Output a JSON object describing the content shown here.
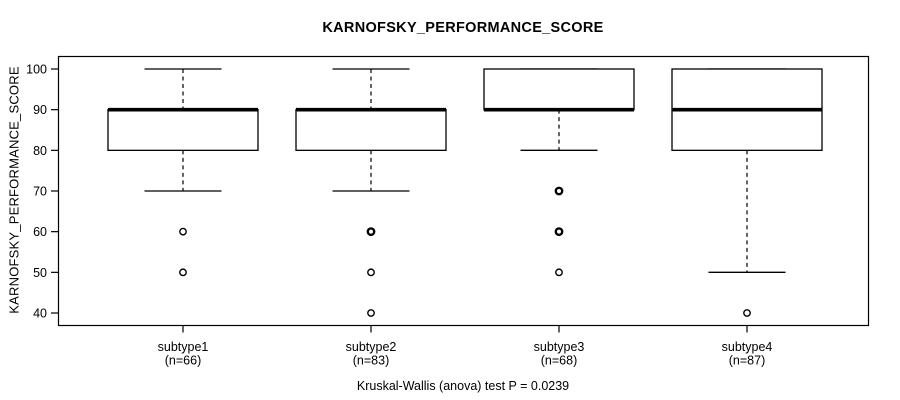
{
  "figure": {
    "background": "#ffffff",
    "line_color": "#000000"
  },
  "chart_data": {
    "type": "boxplot",
    "title": "KARNOFSKY_PERFORMANCE_SCORE",
    "ylabel": "KARNOFSKY_PERFORMANCE_SCORE",
    "xlabel": "",
    "footer": "Kruskal-Wallis (anova) test P = 0.0239",
    "ylim": [
      40,
      100
    ],
    "yticks": [
      40,
      50,
      60,
      70,
      80,
      90,
      100
    ],
    "grid": false,
    "legend": "none",
    "groups": [
      {
        "label": "subtype1",
        "n_label": "(n=66)",
        "n": 66,
        "whisker_low": 70,
        "q1": 80,
        "median": 90,
        "q3": 90,
        "whisker_high": 100,
        "outliers": [
          {
            "value": 60,
            "bold": false
          },
          {
            "value": 50,
            "bold": false
          }
        ]
      },
      {
        "label": "subtype2",
        "n_label": "(n=83)",
        "n": 83,
        "whisker_low": 70,
        "q1": 80,
        "median": 90,
        "q3": 90,
        "whisker_high": 100,
        "outliers": [
          {
            "value": 60,
            "bold": true
          },
          {
            "value": 50,
            "bold": false
          },
          {
            "value": 40,
            "bold": false
          }
        ]
      },
      {
        "label": "subtype3",
        "n_label": "(n=68)",
        "n": 68,
        "whisker_low": 80,
        "q1": 90,
        "median": 90,
        "q3": 100,
        "whisker_high": 100,
        "outliers": [
          {
            "value": 70,
            "bold": true
          },
          {
            "value": 60,
            "bold": true
          },
          {
            "value": 50,
            "bold": false
          }
        ]
      },
      {
        "label": "subtype4",
        "n_label": "(n=87)",
        "n": 87,
        "whisker_low": 50,
        "q1": 80,
        "median": 90,
        "q3": 100,
        "whisker_high": 100,
        "outliers": [
          {
            "value": 40,
            "bold": false
          }
        ]
      }
    ]
  }
}
